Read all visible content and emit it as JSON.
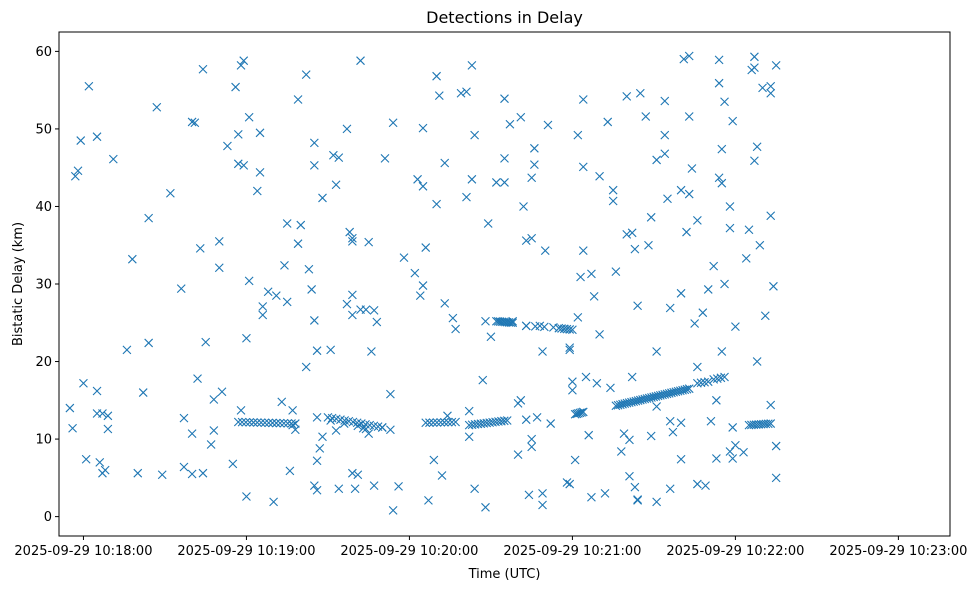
{
  "chart_data": {
    "type": "scatter",
    "title": "Detections in Delay",
    "xlabel": "Time (UTC)",
    "ylabel": "Bistatic Delay (km)",
    "marker": "x",
    "color": "#1f77b4",
    "grid": false,
    "x_ticks": [
      "2025-09-29 10:18:00",
      "2025-09-29 10:19:00",
      "2025-09-29 10:20:00",
      "2025-09-29 10:21:00",
      "2025-09-29 10:22:00",
      "2025-09-29 10:23:00"
    ],
    "y_ticks": [
      "0",
      "10",
      "20",
      "30",
      "40",
      "50",
      "60"
    ],
    "xlim": [
      "2025-09-29 10:17:51",
      "2025-09-29 10:23:19"
    ],
    "ylim": [
      -2.5,
      62.5
    ],
    "points": [
      [
        "10:17:55",
        14.0
      ],
      [
        "10:17:56",
        11.4
      ],
      [
        "10:17:57",
        43.9
      ],
      [
        "10:17:58",
        44.6
      ],
      [
        "10:17:59",
        48.5
      ],
      [
        "10:18:00",
        17.2
      ],
      [
        "10:18:01",
        7.4
      ],
      [
        "10:18:02",
        55.5
      ],
      [
        "10:18:05",
        16.2
      ],
      [
        "10:18:05",
        49.0
      ],
      [
        "10:18:05",
        13.3
      ],
      [
        "10:18:06",
        7.0
      ],
      [
        "10:18:07",
        13.3
      ],
      [
        "10:18:07",
        5.6
      ],
      [
        "10:18:08",
        6.0
      ],
      [
        "10:18:09",
        13.0
      ],
      [
        "10:18:09",
        11.3
      ],
      [
        "10:18:11",
        46.1
      ],
      [
        "10:18:16",
        21.5
      ],
      [
        "10:18:18",
        33.2
      ],
      [
        "10:18:20",
        5.6
      ],
      [
        "10:18:22",
        16.0
      ],
      [
        "10:18:24",
        38.5
      ],
      [
        "10:18:24",
        22.4
      ],
      [
        "10:18:27",
        52.8
      ],
      [
        "10:18:29",
        5.4
      ],
      [
        "10:18:32",
        41.7
      ],
      [
        "10:18:36",
        29.4
      ],
      [
        "10:18:37",
        6.4
      ],
      [
        "10:18:37",
        12.7
      ],
      [
        "10:18:40",
        10.7
      ],
      [
        "10:18:40",
        5.5
      ],
      [
        "10:18:40",
        50.9
      ],
      [
        "10:18:41",
        50.8
      ],
      [
        "10:18:42",
        17.8
      ],
      [
        "10:18:43",
        34.6
      ],
      [
        "10:18:44",
        57.7
      ],
      [
        "10:18:44",
        5.6
      ],
      [
        "10:18:45",
        22.5
      ],
      [
        "10:18:47",
        9.3
      ],
      [
        "10:18:48",
        15.1
      ],
      [
        "10:18:48",
        11.1
      ],
      [
        "10:18:50",
        32.1
      ],
      [
        "10:18:50",
        35.5
      ],
      [
        "10:18:51",
        16.1
      ],
      [
        "10:18:53",
        47.8
      ],
      [
        "10:18:55",
        6.8
      ],
      [
        "10:18:56",
        55.4
      ],
      [
        "10:18:57",
        49.3
      ],
      [
        "10:18:57",
        45.5
      ],
      [
        "10:18:58",
        58.2
      ],
      [
        "10:18:58",
        13.7
      ],
      [
        "10:18:59",
        45.3
      ],
      [
        "10:18:59",
        58.8
      ],
      [
        "10:19:00",
        2.6
      ],
      [
        "10:19:00",
        23.0
      ],
      [
        "10:19:01",
        51.5
      ],
      [
        "10:19:01",
        30.4
      ],
      [
        "10:19:04",
        42.0
      ],
      [
        "10:19:05",
        49.5
      ],
      [
        "10:19:05",
        44.4
      ],
      [
        "10:19:06",
        27.1
      ],
      [
        "10:19:06",
        26.0
      ],
      [
        "10:19:08",
        29.0
      ],
      [
        "10:19:10",
        1.9
      ],
      [
        "10:19:11",
        28.5
      ],
      [
        "10:19:13",
        14.8
      ],
      [
        "10:19:14",
        32.4
      ],
      [
        "10:19:15",
        27.7
      ],
      [
        "10:19:15",
        37.8
      ],
      [
        "10:19:16",
        5.9
      ],
      [
        "10:19:17",
        13.7
      ],
      [
        "10:19:17",
        11.8
      ],
      [
        "10:19:18",
        11.2
      ],
      [
        "10:19:19",
        35.2
      ],
      [
        "10:19:19",
        53.8
      ],
      [
        "10:19:20",
        37.6
      ],
      [
        "10:19:22",
        57.0
      ],
      [
        "10:19:22",
        19.3
      ],
      [
        "10:19:23",
        31.9
      ],
      [
        "10:19:24",
        29.3
      ],
      [
        "10:19:25",
        25.3
      ],
      [
        "10:19:25",
        48.2
      ],
      [
        "10:19:25",
        45.3
      ],
      [
        "10:19:25",
        4.0
      ],
      [
        "10:19:26",
        3.4
      ],
      [
        "10:19:26",
        21.4
      ],
      [
        "10:19:26",
        7.2
      ],
      [
        "10:19:26",
        12.8
      ],
      [
        "10:19:27",
        8.8
      ],
      [
        "10:19:28",
        41.1
      ],
      [
        "10:19:28",
        10.3
      ],
      [
        "10:19:31",
        21.5
      ],
      [
        "10:19:31",
        12.4
      ],
      [
        "10:19:32",
        46.6
      ],
      [
        "10:19:33",
        11.1
      ],
      [
        "10:19:33",
        42.8
      ],
      [
        "10:19:34",
        46.3
      ],
      [
        "10:19:34",
        3.6
      ],
      [
        "10:19:36",
        12.0
      ],
      [
        "10:19:37",
        50.0
      ],
      [
        "10:19:37",
        27.4
      ],
      [
        "10:19:38",
        36.7
      ],
      [
        "10:19:39",
        28.6
      ],
      [
        "10:19:39",
        35.9
      ],
      [
        "10:19:39",
        35.5
      ],
      [
        "10:19:39",
        26.0
      ],
      [
        "10:19:39",
        5.6
      ],
      [
        "10:19:40",
        3.6
      ],
      [
        "10:19:41",
        11.7
      ],
      [
        "10:19:41",
        5.4
      ],
      [
        "10:19:42",
        26.7
      ],
      [
        "10:19:42",
        58.8
      ],
      [
        "10:19:43",
        11.4
      ],
      [
        "10:19:44",
        26.7
      ],
      [
        "10:19:44",
        11.3
      ],
      [
        "10:19:45",
        35.4
      ],
      [
        "10:19:45",
        10.7
      ],
      [
        "10:19:46",
        21.3
      ],
      [
        "10:19:47",
        26.6
      ],
      [
        "10:19:47",
        4.0
      ],
      [
        "10:19:48",
        25.1
      ],
      [
        "10:19:50",
        11.5
      ],
      [
        "10:19:51",
        46.2
      ],
      [
        "10:19:53",
        15.8
      ],
      [
        "10:19:53",
        11.2
      ],
      [
        "10:19:54",
        50.8
      ],
      [
        "10:19:54",
        0.8
      ],
      [
        "10:19:56",
        3.9
      ],
      [
        "10:19:58",
        33.4
      ],
      [
        "10:20:02",
        31.4
      ],
      [
        "10:20:03",
        43.5
      ],
      [
        "10:20:04",
        28.5
      ],
      [
        "10:20:05",
        42.6
      ],
      [
        "10:20:05",
        50.1
      ],
      [
        "10:20:05",
        29.8
      ],
      [
        "10:20:06",
        34.7
      ],
      [
        "10:20:07",
        2.1
      ],
      [
        "10:20:09",
        7.3
      ],
      [
        "10:20:10",
        56.8
      ],
      [
        "10:20:10",
        40.3
      ],
      [
        "10:20:11",
        54.3
      ],
      [
        "10:20:12",
        5.3
      ],
      [
        "10:20:13",
        45.6
      ],
      [
        "10:20:13",
        27.5
      ],
      [
        "10:20:14",
        13.0
      ],
      [
        "10:20:16",
        25.6
      ],
      [
        "10:20:17",
        24.2
      ],
      [
        "10:20:19",
        54.6
      ],
      [
        "10:20:21",
        41.2
      ],
      [
        "10:20:21",
        54.8
      ],
      [
        "10:20:22",
        13.6
      ],
      [
        "10:20:22",
        10.3
      ],
      [
        "10:20:23",
        58.2
      ],
      [
        "10:20:23",
        43.5
      ],
      [
        "10:20:24",
        49.2
      ],
      [
        "10:20:24",
        3.6
      ],
      [
        "10:20:27",
        17.6
      ],
      [
        "10:20:28",
        25.2
      ],
      [
        "10:20:28",
        1.2
      ],
      [
        "10:20:29",
        37.8
      ],
      [
        "10:20:30",
        23.2
      ],
      [
        "10:20:32",
        43.1
      ],
      [
        "10:20:35",
        43.1
      ],
      [
        "10:20:35",
        53.9
      ],
      [
        "10:20:35",
        46.2
      ],
      [
        "10:20:37",
        50.6
      ],
      [
        "10:20:38",
        25.2
      ],
      [
        "10:20:40",
        14.6
      ],
      [
        "10:20:40",
        8.0
      ],
      [
        "10:20:41",
        15.0
      ],
      [
        "10:20:41",
        51.5
      ],
      [
        "10:20:42",
        40.0
      ],
      [
        "10:20:43",
        35.6
      ],
      [
        "10:20:43",
        24.6
      ],
      [
        "10:20:43",
        12.5
      ],
      [
        "10:20:44",
        2.8
      ],
      [
        "10:20:45",
        9.0
      ],
      [
        "10:20:45",
        35.9
      ],
      [
        "10:20:45",
        10.0
      ],
      [
        "10:20:45",
        43.7
      ],
      [
        "10:20:46",
        45.4
      ],
      [
        "10:20:46",
        47.5
      ],
      [
        "10:20:47",
        12.8
      ],
      [
        "10:20:48",
        24.6
      ],
      [
        "10:20:49",
        21.3
      ],
      [
        "10:20:49",
        3.0
      ],
      [
        "10:20:49",
        1.5
      ],
      [
        "10:20:50",
        34.3
      ],
      [
        "10:20:51",
        50.5
      ],
      [
        "10:20:52",
        12.0
      ],
      [
        "10:20:58",
        4.4
      ],
      [
        "10:20:59",
        21.8
      ],
      [
        "10:20:59",
        21.5
      ],
      [
        "10:20:59",
        4.2
      ],
      [
        "10:21:00",
        17.4
      ],
      [
        "10:21:00",
        16.3
      ],
      [
        "10:21:01",
        7.3
      ],
      [
        "10:21:02",
        25.7
      ],
      [
        "10:21:02",
        49.2
      ],
      [
        "10:21:03",
        30.9
      ],
      [
        "10:21:04",
        34.3
      ],
      [
        "10:21:04",
        45.1
      ],
      [
        "10:21:04",
        53.8
      ],
      [
        "10:21:05",
        18.0
      ],
      [
        "10:21:06",
        10.5
      ],
      [
        "10:21:07",
        2.5
      ],
      [
        "10:21:07",
        31.3
      ],
      [
        "10:21:08",
        28.4
      ],
      [
        "10:21:09",
        17.2
      ],
      [
        "10:21:10",
        43.9
      ],
      [
        "10:21:10",
        23.5
      ],
      [
        "10:21:12",
        3.0
      ],
      [
        "10:21:13",
        50.9
      ],
      [
        "10:21:14",
        16.6
      ],
      [
        "10:21:15",
        42.1
      ],
      [
        "10:21:15",
        40.7
      ],
      [
        "10:21:16",
        31.6
      ],
      [
        "10:21:18",
        8.4
      ],
      [
        "10:21:19",
        10.7
      ],
      [
        "10:21:20",
        36.4
      ],
      [
        "10:21:20",
        54.2
      ],
      [
        "10:21:21",
        9.9
      ],
      [
        "10:21:21",
        5.2
      ],
      [
        "10:21:22",
        36.6
      ],
      [
        "10:21:22",
        18.0
      ],
      [
        "10:21:23",
        34.5
      ],
      [
        "10:21:23",
        3.8
      ],
      [
        "10:21:24",
        2.2
      ],
      [
        "10:21:24",
        2.1
      ],
      [
        "10:21:24",
        27.2
      ],
      [
        "10:21:25",
        54.6
      ],
      [
        "10:21:27",
        51.6
      ],
      [
        "10:21:28",
        35.0
      ],
      [
        "10:21:29",
        38.6
      ],
      [
        "10:21:29",
        10.4
      ],
      [
        "10:21:31",
        46.0
      ],
      [
        "10:21:31",
        1.9
      ],
      [
        "10:21:31",
        14.2
      ],
      [
        "10:21:31",
        21.3
      ],
      [
        "10:21:34",
        53.6
      ],
      [
        "10:21:34",
        49.2
      ],
      [
        "10:21:34",
        46.8
      ],
      [
        "10:21:35",
        41.0
      ],
      [
        "10:21:36",
        26.9
      ],
      [
        "10:21:36",
        12.3
      ],
      [
        "10:21:36",
        3.6
      ],
      [
        "10:21:37",
        10.9
      ],
      [
        "10:21:40",
        42.1
      ],
      [
        "10:21:40",
        7.4
      ],
      [
        "10:21:40",
        12.1
      ],
      [
        "10:21:40",
        28.8
      ],
      [
        "10:21:41",
        59.0
      ],
      [
        "10:21:42",
        36.7
      ],
      [
        "10:21:43",
        41.6
      ],
      [
        "10:21:43",
        51.6
      ],
      [
        "10:21:43",
        59.4
      ],
      [
        "10:21:44",
        44.9
      ],
      [
        "10:21:45",
        24.9
      ],
      [
        "10:21:46",
        4.2
      ],
      [
        "10:21:46",
        19.3
      ],
      [
        "10:21:46",
        38.2
      ],
      [
        "10:21:48",
        26.3
      ],
      [
        "10:21:49",
        4.0
      ],
      [
        "10:21:50",
        29.3
      ],
      [
        "10:21:51",
        12.3
      ],
      [
        "10:21:52",
        32.3
      ],
      [
        "10:21:53",
        7.5
      ],
      [
        "10:21:53",
        15.0
      ],
      [
        "10:21:54",
        58.9
      ],
      [
        "10:21:54",
        55.9
      ],
      [
        "10:21:54",
        43.7
      ],
      [
        "10:21:55",
        43.0
      ],
      [
        "10:21:55",
        21.3
      ],
      [
        "10:21:55",
        47.4
      ],
      [
        "10:21:56",
        53.5
      ],
      [
        "10:21:56",
        30.0
      ],
      [
        "10:21:58",
        40.0
      ],
      [
        "10:21:58",
        37.2
      ],
      [
        "10:21:58",
        8.4
      ],
      [
        "10:21:59",
        7.5
      ],
      [
        "10:21:59",
        51.0
      ],
      [
        "10:21:59",
        11.5
      ],
      [
        "10:22:00",
        24.5
      ],
      [
        "10:22:00",
        9.2
      ],
      [
        "10:22:03",
        8.3
      ],
      [
        "10:22:04",
        33.3
      ],
      [
        "10:22:05",
        37.0
      ],
      [
        "10:22:06",
        57.6
      ],
      [
        "10:22:07",
        45.9
      ],
      [
        "10:22:07",
        59.3
      ],
      [
        "10:22:07",
        57.9
      ],
      [
        "10:22:08",
        20.0
      ],
      [
        "10:22:08",
        47.7
      ],
      [
        "10:22:09",
        35.0
      ],
      [
        "10:22:10",
        55.3
      ],
      [
        "10:22:11",
        25.9
      ],
      [
        "10:22:13",
        54.6
      ],
      [
        "10:22:13",
        55.5
      ],
      [
        "10:22:13",
        38.8
      ],
      [
        "10:22:13",
        14.4
      ],
      [
        "10:22:14",
        29.7
      ],
      [
        "10:22:15",
        9.1
      ],
      [
        "10:22:15",
        5.0
      ],
      [
        "10:22:15",
        58.2
      ]
    ],
    "tracks": [
      {
        "from": [
          "10:18:57",
          12.2
        ],
        "to": [
          "10:19:18",
          12.0
        ],
        "count": 16
      },
      {
        "from": [
          "10:19:30",
          12.8
        ],
        "to": [
          "10:19:50",
          11.5
        ],
        "count": 14
      },
      {
        "from": [
          "10:20:06",
          12.1
        ],
        "to": [
          "10:20:17",
          12.2
        ],
        "count": 9
      },
      {
        "from": [
          "10:20:22",
          11.8
        ],
        "to": [
          "10:20:36",
          12.4
        ],
        "count": 14
      },
      {
        "from": [
          "10:20:32",
          25.2
        ],
        "to": [
          "10:20:38",
          25.0
        ],
        "count": 10
      },
      {
        "from": [
          "10:20:43",
          24.6
        ],
        "to": [
          "10:20:53",
          24.4
        ],
        "count": 4
      },
      {
        "from": [
          "10:20:55",
          24.3
        ],
        "to": [
          "10:21:00",
          24.1
        ],
        "count": 6
      },
      {
        "from": [
          "10:21:01",
          13.2
        ],
        "to": [
          "10:21:04",
          13.5
        ],
        "count": 6
      },
      {
        "from": [
          "10:21:16",
          14.3
        ],
        "to": [
          "10:21:43",
          16.5
        ],
        "count": 34
      },
      {
        "from": [
          "10:21:46",
          17.2
        ],
        "to": [
          "10:21:50",
          17.4
        ],
        "count": 4
      },
      {
        "from": [
          "10:21:52",
          17.7
        ],
        "to": [
          "10:21:56",
          18.0
        ],
        "count": 4
      },
      {
        "from": [
          "10:22:05",
          11.8
        ],
        "to": [
          "10:22:13",
          12.0
        ],
        "count": 10
      }
    ]
  }
}
